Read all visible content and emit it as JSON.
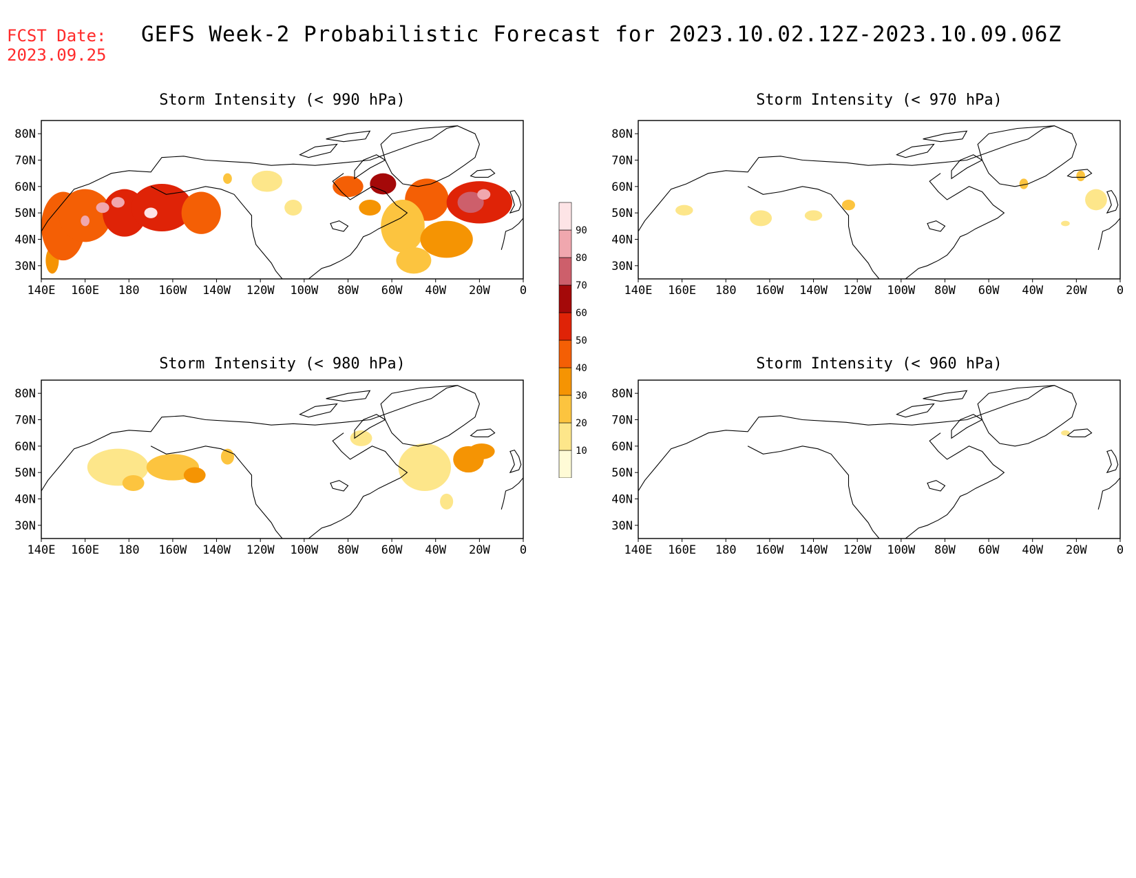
{
  "header": {
    "fcst_label": "FCST Date:",
    "fcst_date": "2023.09.25",
    "title": "GEFS Week-2 Probabilistic Forecast for 2023.10.02.12Z-2023.10.09.06Z"
  },
  "axes": {
    "x_ticks": [
      "140E",
      "160E",
      "180",
      "160W",
      "140W",
      "120W",
      "100W",
      "80W",
      "60W",
      "40W",
      "20W",
      "0"
    ],
    "y_ticks": [
      "80N",
      "70N",
      "60N",
      "50N",
      "40N",
      "30N"
    ],
    "lon_range": [
      140,
      360
    ],
    "lat_range": [
      25,
      85
    ]
  },
  "colorbar": {
    "levels": [
      "10",
      "20",
      "30",
      "40",
      "50",
      "60",
      "70",
      "80",
      "90"
    ],
    "colors": [
      "#fffbd6",
      "#fde68a",
      "#fcc43f",
      "#f59403",
      "#f45f05",
      "#df2307",
      "#a40909",
      "#cd5f6b",
      "#f0a7ae",
      "#fde4e6"
    ]
  },
  "panels": [
    {
      "id": "p990",
      "title": "Storm Intensity (< 990 hPa)",
      "blobs": [
        [
          145,
          32,
          3,
          5,
          3
        ],
        [
          150,
          45,
          10,
          13,
          4
        ],
        [
          160,
          49,
          12,
          10,
          4
        ],
        [
          178,
          50,
          10,
          9,
          5
        ],
        [
          195,
          52,
          14,
          9,
          5
        ],
        [
          213,
          50,
          9,
          8,
          4
        ],
        [
          168,
          52,
          3,
          2,
          8
        ],
        [
          175,
          54,
          3,
          2,
          8
        ],
        [
          190,
          50,
          3,
          2,
          9
        ],
        [
          160,
          47,
          2,
          2,
          8
        ],
        [
          225,
          63,
          2,
          2,
          2
        ],
        [
          243,
          62,
          7,
          4,
          1
        ],
        [
          255,
          52,
          4,
          3,
          1
        ],
        [
          280,
          60,
          7,
          4,
          4
        ],
        [
          296,
          61,
          6,
          4,
          6
        ],
        [
          316,
          55,
          10,
          8,
          4
        ],
        [
          305,
          45,
          10,
          10,
          2
        ],
        [
          340,
          54,
          15,
          8,
          5
        ],
        [
          336,
          54,
          6,
          4,
          7
        ],
        [
          342,
          57,
          3,
          2,
          8
        ],
        [
          325,
          40,
          12,
          7,
          3
        ],
        [
          310,
          32,
          8,
          5,
          2
        ],
        [
          290,
          52,
          5,
          3,
          3
        ]
      ]
    },
    {
      "id": "p970",
      "title": "Storm Intensity (< 970 hPa)",
      "blobs": [
        [
          196,
          48,
          5,
          3,
          1
        ],
        [
          161,
          51,
          4,
          2,
          1
        ],
        [
          236,
          53,
          3,
          2,
          2
        ],
        [
          220,
          49,
          4,
          2,
          1
        ],
        [
          316,
          61,
          2,
          2,
          2
        ],
        [
          349,
          55,
          5,
          4,
          1
        ],
        [
          342,
          64,
          2,
          2,
          2
        ],
        [
          335,
          46,
          2,
          1,
          1
        ]
      ]
    },
    {
      "id": "p980",
      "title": "Storm Intensity (< 980 hPa)",
      "blobs": [
        [
          175,
          52,
          14,
          7,
          1
        ],
        [
          200,
          52,
          12,
          5,
          2
        ],
        [
          210,
          49,
          5,
          3,
          3
        ],
        [
          182,
          46,
          5,
          3,
          2
        ],
        [
          225,
          56,
          3,
          3,
          2
        ],
        [
          286,
          63,
          5,
          3,
          1
        ],
        [
          315,
          52,
          12,
          9,
          1
        ],
        [
          335,
          55,
          7,
          5,
          3
        ],
        [
          341,
          58,
          6,
          3,
          3
        ],
        [
          325,
          39,
          3,
          3,
          1
        ]
      ]
    },
    {
      "id": "p960",
      "title": "Storm Intensity (< 960 hPa)",
      "blobs": [
        [
          335,
          65,
          2,
          1,
          1
        ]
      ]
    }
  ]
}
